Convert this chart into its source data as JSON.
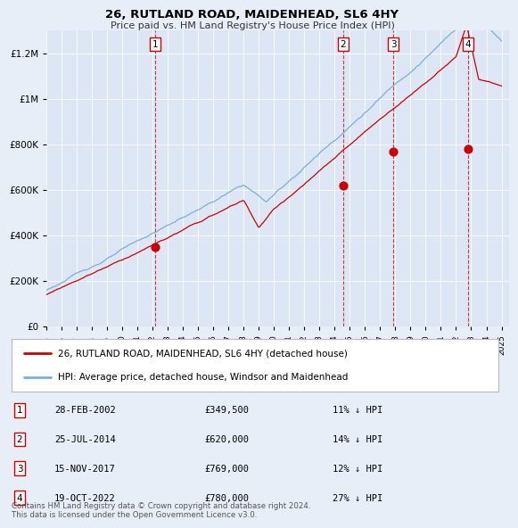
{
  "title": "26, RUTLAND ROAD, MAIDENHEAD, SL6 4HY",
  "subtitle": "Price paid vs. HM Land Registry's House Price Index (HPI)",
  "bg_color": "#e8eef8",
  "plot_bg_color": "#dce6f5",
  "ylim": [
    0,
    1300000
  ],
  "yticks": [
    0,
    200000,
    400000,
    600000,
    800000,
    1000000,
    1200000
  ],
  "ytick_labels": [
    "£0",
    "£200K",
    "£400K",
    "£600K",
    "£800K",
    "£1M",
    "£1.2M"
  ],
  "sale_dates": [
    2002.15,
    2014.56,
    2017.87,
    2022.8
  ],
  "sale_prices": [
    349500,
    620000,
    769000,
    780000
  ],
  "sale_labels": [
    "1",
    "2",
    "3",
    "4"
  ],
  "legend_items": [
    {
      "label": "26, RUTLAND ROAD, MAIDENHEAD, SL6 4HY (detached house)",
      "color": "#cc0000"
    },
    {
      "label": "HPI: Average price, detached house, Windsor and Maidenhead",
      "color": "#7ab0d8"
    }
  ],
  "table_rows": [
    {
      "num": "1",
      "date": "28-FEB-2002",
      "price": "£349,500",
      "hpi": "11% ↓ HPI"
    },
    {
      "num": "2",
      "date": "25-JUL-2014",
      "price": "£620,000",
      "hpi": "14% ↓ HPI"
    },
    {
      "num": "3",
      "date": "15-NOV-2017",
      "price": "£769,000",
      "hpi": "12% ↓ HPI"
    },
    {
      "num": "4",
      "date": "19-OCT-2022",
      "price": "£780,000",
      "hpi": "27% ↓ HPI"
    }
  ],
  "footer": "Contains HM Land Registry data © Crown copyright and database right 2024.\nThis data is licensed under the Open Government Licence v3.0.",
  "xmin": 1995,
  "xmax": 2025.5,
  "xtick_years": [
    1995,
    1996,
    1997,
    1998,
    1999,
    2000,
    2001,
    2002,
    2003,
    2004,
    2005,
    2006,
    2007,
    2008,
    2009,
    2010,
    2011,
    2012,
    2013,
    2014,
    2015,
    2016,
    2017,
    2018,
    2019,
    2020,
    2021,
    2022,
    2023,
    2024,
    2025
  ]
}
